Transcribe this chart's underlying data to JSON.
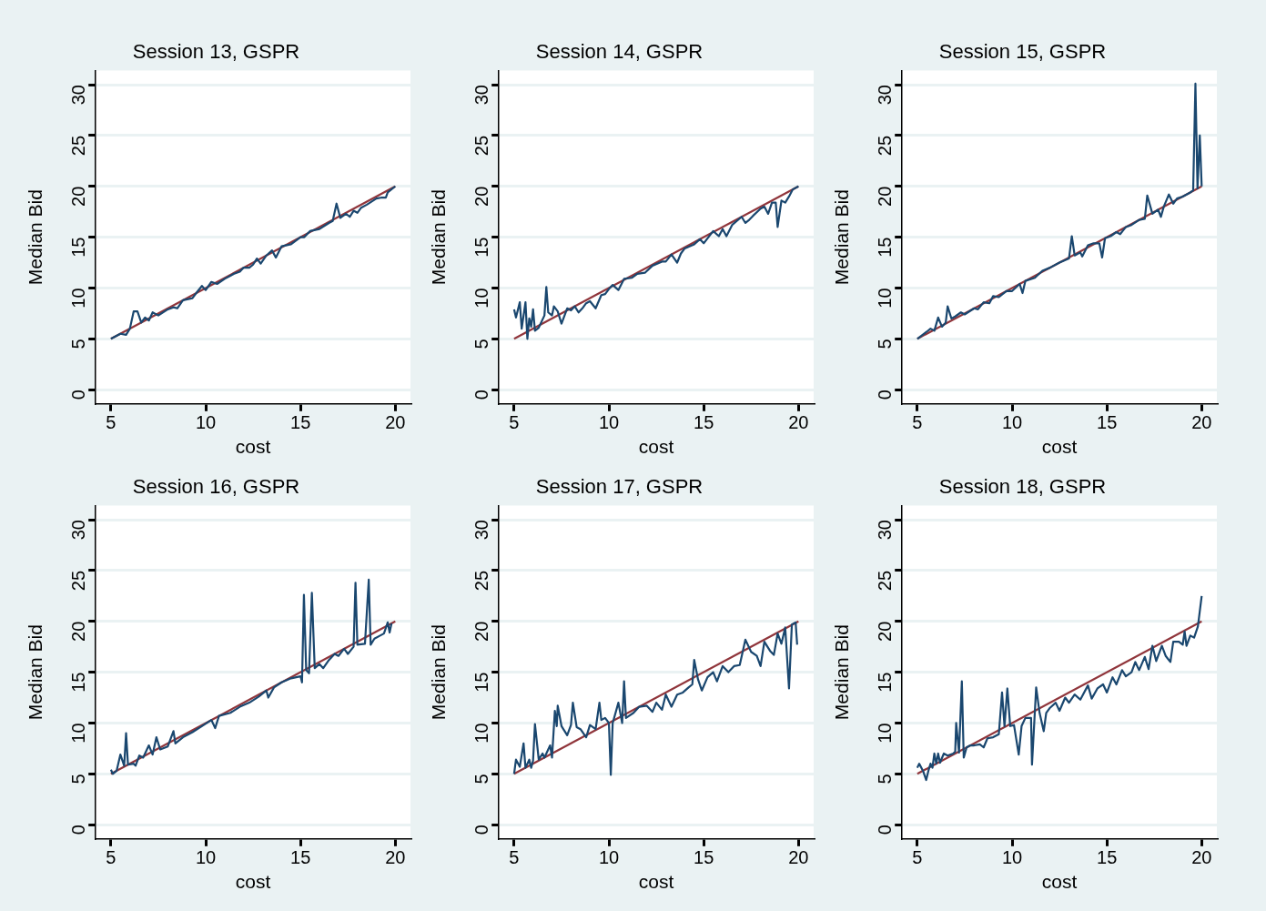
{
  "chart_data": [
    {
      "type": "line",
      "title": "Session 13, GSPR",
      "xlabel": "cost",
      "ylabel": "Median Bid",
      "xlim": [
        4.2,
        20.8
      ],
      "ylim": [
        -1.4,
        31.4
      ],
      "xticks": [
        5,
        10,
        15,
        20
      ],
      "yticks": [
        0,
        5,
        10,
        15,
        20,
        25,
        30
      ],
      "grid": "y",
      "marker": "none",
      "legend": false,
      "series": [
        {
          "color": "#1a476f",
          "x": [
            5,
            5.5,
            5.8,
            6.0,
            6.2,
            6.4,
            6.6,
            6.8,
            7.0,
            7.2,
            7.5,
            8.0,
            8.3,
            8.5,
            8.8,
            9.3,
            9.5,
            9.8,
            10.0,
            10.3,
            10.6,
            11.0,
            11.5,
            11.8,
            12.0,
            12.3,
            12.5,
            12.7,
            12.9,
            13.2,
            13.5,
            13.7,
            14.0,
            14.5,
            15.0,
            15.2,
            15.5,
            16.0,
            16.5,
            16.7,
            16.9,
            17.1,
            17.4,
            17.6,
            17.8,
            18.0,
            18.2,
            18.5,
            19.0,
            19.3,
            19.5,
            19.6,
            20
          ],
          "values": [
            5,
            5.5,
            5.4,
            6.0,
            7.7,
            7.7,
            6.6,
            7.1,
            6.8,
            7.6,
            7.3,
            7.9,
            8.1,
            8.0,
            8.8,
            9.0,
            9.5,
            10.2,
            9.8,
            10.6,
            10.4,
            10.9,
            11.4,
            11.6,
            12.0,
            12.0,
            12.3,
            12.9,
            12.4,
            13.2,
            13.7,
            13.0,
            14.1,
            14.3,
            15.0,
            15.0,
            15.6,
            15.8,
            16.4,
            16.6,
            18.3,
            16.9,
            17.3,
            17.0,
            17.6,
            17.4,
            17.9,
            18.2,
            18.8,
            18.9,
            18.9,
            19.4,
            20
          ]
        },
        {
          "color": "#90353b",
          "x": [
            5,
            20
          ],
          "values": [
            5,
            20
          ]
        }
      ]
    },
    {
      "type": "line",
      "title": "Session 14, GSPR",
      "xlabel": "cost",
      "ylabel": "Median Bid",
      "xlim": [
        4.2,
        20.8
      ],
      "ylim": [
        -1.4,
        31.4
      ],
      "xticks": [
        5,
        10,
        15,
        20
      ],
      "yticks": [
        0,
        5,
        10,
        15,
        20,
        25,
        30
      ],
      "grid": "y",
      "marker": "none",
      "legend": false,
      "series": [
        {
          "color": "#1a476f",
          "x": [
            5,
            5.1,
            5.3,
            5.4,
            5.6,
            5.7,
            5.8,
            5.9,
            6.0,
            6.1,
            6.3,
            6.6,
            6.7,
            6.8,
            7.0,
            7.1,
            7.3,
            7.5,
            7.8,
            8.0,
            8.2,
            8.4,
            8.6,
            8.8,
            9.0,
            9.3,
            9.6,
            9.8,
            10.0,
            10.2,
            10.5,
            10.8,
            11.2,
            11.5,
            11.9,
            12.3,
            12.8,
            13.0,
            13.3,
            13.6,
            13.8,
            14.0,
            14.5,
            14.8,
            15.0,
            15.5,
            15.8,
            16.0,
            16.2,
            16.5,
            17.0,
            17.2,
            17.4,
            17.6,
            18.0,
            18.2,
            18.4,
            18.6,
            18.8,
            18.9,
            19.1,
            19.3,
            19.5,
            19.7,
            20
          ],
          "values": [
            7.9,
            7.1,
            8.6,
            6.0,
            8.6,
            5.0,
            7.0,
            6.2,
            7.9,
            5.8,
            6.1,
            7.3,
            10.1,
            7.6,
            7.3,
            8.2,
            7.7,
            6.5,
            8.0,
            7.8,
            8.2,
            7.6,
            8.0,
            8.5,
            8.7,
            8.0,
            9.3,
            9.4,
            9.9,
            10.3,
            9.8,
            10.9,
            11.0,
            11.4,
            11.5,
            12.2,
            12.6,
            12.6,
            13.3,
            12.5,
            13.4,
            13.9,
            14.3,
            14.8,
            14.4,
            15.6,
            15.1,
            15.8,
            15.1,
            16.2,
            17.0,
            16.4,
            16.7,
            17.1,
            17.8,
            18.0,
            17.3,
            18.4,
            18.4,
            16.0,
            18.6,
            18.4,
            19.0,
            19.7,
            20
          ]
        },
        {
          "color": "#90353b",
          "x": [
            5,
            20
          ],
          "values": [
            5,
            20
          ]
        }
      ]
    },
    {
      "type": "line",
      "title": "Session 15, GSPR",
      "xlabel": "cost",
      "ylabel": "Median Bid",
      "xlim": [
        4.2,
        20.8
      ],
      "ylim": [
        -1.4,
        31.4
      ],
      "xticks": [
        5,
        10,
        15,
        20
      ],
      "yticks": [
        0,
        5,
        10,
        15,
        20,
        25,
        30
      ],
      "grid": "y",
      "marker": "none",
      "legend": false,
      "series": [
        {
          "color": "#1a476f",
          "x": [
            5,
            5.5,
            5.7,
            5.9,
            6.1,
            6.3,
            6.5,
            6.6,
            6.8,
            7.0,
            7.3,
            7.5,
            8.0,
            8.2,
            8.5,
            8.8,
            9.0,
            9.3,
            9.7,
            10.0,
            10.4,
            10.55,
            10.7,
            11.2,
            11.6,
            12.0,
            12.5,
            13.0,
            13.15,
            13.3,
            13.6,
            13.7,
            14.0,
            14.3,
            14.6,
            14.75,
            14.9,
            15.2,
            15.5,
            15.7,
            16.0,
            16.3,
            16.7,
            17.0,
            17.13,
            17.4,
            17.7,
            17.85,
            18.0,
            18.27,
            18.5,
            18.7,
            19.0,
            19.4,
            19.55,
            19.67,
            19.78,
            19.9,
            20
          ],
          "values": [
            5,
            5.7,
            6.0,
            5.8,
            7.1,
            6.2,
            6.6,
            8.2,
            7.0,
            7.2,
            7.6,
            7.4,
            8.0,
            7.9,
            8.6,
            8.5,
            9.2,
            9.1,
            9.7,
            9.7,
            10.4,
            9.5,
            10.7,
            11.0,
            11.7,
            12.0,
            12.5,
            12.9,
            15.1,
            13.2,
            13.5,
            13.1,
            14.2,
            14.4,
            14.4,
            13.0,
            14.9,
            15.1,
            15.5,
            15.3,
            16.0,
            16.2,
            16.7,
            16.8,
            19.1,
            17.3,
            17.7,
            17.0,
            18.0,
            19.2,
            18.3,
            18.8,
            19.0,
            19.4,
            19.6,
            30.1,
            19.8,
            25.0,
            20
          ]
        },
        {
          "color": "#90353b",
          "x": [
            5,
            20
          ],
          "values": [
            5,
            20
          ]
        }
      ]
    },
    {
      "type": "line",
      "title": "Session 16, GSPR",
      "xlabel": "cost",
      "ylabel": "Median Bid",
      "xlim": [
        4.2,
        20.8
      ],
      "ylim": [
        -1.4,
        31.4
      ],
      "xticks": [
        5,
        10,
        15,
        20
      ],
      "yticks": [
        0,
        5,
        10,
        15,
        20,
        25,
        30
      ],
      "grid": "y",
      "marker": "none",
      "legend": false,
      "series": [
        {
          "color": "#1a476f",
          "x": [
            5,
            5.1,
            5.3,
            5.5,
            5.7,
            5.8,
            5.9,
            6.2,
            6.3,
            6.5,
            6.7,
            7.0,
            7.2,
            7.4,
            7.6,
            8.0,
            8.3,
            8.4,
            8.8,
            9.3,
            9.8,
            10.3,
            10.5,
            10.7,
            11.3,
            11.8,
            12.3,
            12.8,
            13.2,
            13.3,
            13.6,
            14.0,
            14.5,
            15.0,
            15.08,
            15.18,
            15.3,
            15.45,
            15.6,
            15.75,
            16.0,
            16.2,
            16.5,
            16.8,
            17.0,
            17.3,
            17.5,
            17.8,
            17.9,
            18.0,
            18.4,
            18.6,
            18.7,
            18.9,
            19.2,
            19.4,
            19.6,
            19.7,
            19.8
          ],
          "values": [
            5.4,
            5.0,
            5.3,
            6.9,
            5.8,
            9.0,
            5.9,
            6.0,
            5.8,
            6.8,
            6.6,
            7.8,
            6.9,
            8.6,
            7.4,
            7.7,
            9.2,
            8.0,
            8.6,
            9.1,
            9.7,
            10.3,
            9.5,
            10.7,
            11.0,
            11.6,
            12.0,
            12.6,
            13.2,
            12.5,
            13.5,
            14.0,
            14.4,
            14.6,
            14.0,
            22.6,
            15.2,
            14.9,
            22.8,
            15.4,
            15.8,
            15.4,
            16.2,
            16.8,
            16.6,
            17.3,
            16.8,
            17.5,
            23.8,
            17.7,
            17.8,
            24.1,
            17.7,
            18.3,
            18.6,
            18.8,
            19.9,
            18.9,
            19.8
          ]
        },
        {
          "color": "#90353b",
          "x": [
            5,
            20
          ],
          "values": [
            5,
            20
          ]
        }
      ]
    },
    {
      "type": "line",
      "title": "Session 17, GSPR",
      "xlabel": "cost",
      "ylabel": "Median Bid",
      "xlim": [
        4.2,
        20.8
      ],
      "ylim": [
        -1.4,
        31.4
      ],
      "xticks": [
        5,
        10,
        15,
        20
      ],
      "yticks": [
        0,
        5,
        10,
        15,
        20,
        25,
        30
      ],
      "grid": "y",
      "marker": "none",
      "legend": false,
      "series": [
        {
          "color": "#1a476f",
          "x": [
            5,
            5.1,
            5.3,
            5.5,
            5.6,
            5.8,
            5.9,
            6.0,
            6.1,
            6.3,
            6.5,
            6.6,
            6.8,
            6.9,
            7.0,
            7.15,
            7.25,
            7.3,
            7.5,
            7.8,
            8.0,
            8.1,
            8.3,
            8.5,
            8.8,
            9.0,
            9.3,
            9.5,
            9.6,
            9.8,
            10.0,
            10.1,
            10.2,
            10.5,
            10.7,
            10.8,
            10.9,
            11.3,
            11.6,
            12.0,
            12.3,
            12.5,
            12.8,
            13.0,
            13.3,
            13.6,
            13.9,
            14.2,
            14.4,
            14.5,
            14.7,
            14.9,
            15.2,
            15.5,
            15.7,
            16.0,
            16.3,
            16.6,
            16.9,
            17.2,
            17.5,
            17.8,
            18.0,
            18.2,
            18.5,
            18.7,
            18.9,
            19.1,
            19.3,
            19.5,
            19.65,
            19.85,
            19.93
          ],
          "values": [
            5,
            6.4,
            5.7,
            8.0,
            5.6,
            6.4,
            5.6,
            6.3,
            9.9,
            6.4,
            7.0,
            6.6,
            7.4,
            7.8,
            6.6,
            11.2,
            9.7,
            11.7,
            9.7,
            8.8,
            9.8,
            12.0,
            9.6,
            9.4,
            8.6,
            9.8,
            9.4,
            12.0,
            10.3,
            10.5,
            10.0,
            4.9,
            10.0,
            12.0,
            10.0,
            14.1,
            10.5,
            11.0,
            11.6,
            11.7,
            11.1,
            12.0,
            11.3,
            12.8,
            11.6,
            12.8,
            13.0,
            13.5,
            13.8,
            16.2,
            14.3,
            13.2,
            14.5,
            15.0,
            14.1,
            15.6,
            15.0,
            15.6,
            15.7,
            18.2,
            17.0,
            16.6,
            15.6,
            18.0,
            17.1,
            16.7,
            18.8,
            17.8,
            19.4,
            13.4,
            19.7,
            19.9,
            17.7
          ]
        },
        {
          "color": "#90353b",
          "x": [
            5,
            20
          ],
          "values": [
            5,
            20
          ]
        }
      ]
    },
    {
      "type": "line",
      "title": "Session 18, GSPR",
      "xlabel": "cost",
      "ylabel": "Median Bid",
      "xlim": [
        4.2,
        20.8
      ],
      "ylim": [
        -1.4,
        31.4
      ],
      "xticks": [
        5,
        10,
        15,
        20
      ],
      "yticks": [
        0,
        5,
        10,
        15,
        20,
        25,
        30
      ],
      "grid": "y",
      "marker": "none",
      "legend": false,
      "series": [
        {
          "color": "#1a476f",
          "x": [
            5,
            5.1,
            5.3,
            5.47,
            5.6,
            5.7,
            5.8,
            5.9,
            6.0,
            6.1,
            6.2,
            6.4,
            6.6,
            6.9,
            7.0,
            7.05,
            7.2,
            7.35,
            7.45,
            7.6,
            7.8,
            8.0,
            8.3,
            8.5,
            8.7,
            9.0,
            9.3,
            9.47,
            9.6,
            9.75,
            9.9,
            10.1,
            10.35,
            10.5,
            10.7,
            11.0,
            11.05,
            11.27,
            11.45,
            11.67,
            11.8,
            12.0,
            12.3,
            12.5,
            12.8,
            13.0,
            13.3,
            13.6,
            14.0,
            14.2,
            14.5,
            14.8,
            15.0,
            15.3,
            15.5,
            15.8,
            16.0,
            16.3,
            16.5,
            16.7,
            17.0,
            17.2,
            17.4,
            17.6,
            17.9,
            18.1,
            18.35,
            18.5,
            18.8,
            19.0,
            19.1,
            19.2,
            19.4,
            19.6,
            19.8,
            20
          ],
          "values": [
            5.6,
            6.0,
            5.3,
            4.4,
            5.4,
            6.0,
            5.6,
            7.0,
            6.0,
            7.0,
            6.1,
            7.0,
            6.8,
            7.0,
            7.2,
            10.0,
            7.1,
            14.1,
            6.6,
            7.6,
            7.8,
            7.8,
            7.9,
            7.6,
            8.5,
            8.6,
            8.9,
            13.0,
            9.7,
            13.4,
            9.7,
            9.8,
            6.9,
            9.7,
            10.5,
            10.5,
            5.9,
            13.5,
            11.0,
            9.2,
            11.0,
            11.5,
            12.0,
            11.2,
            12.5,
            12.0,
            12.8,
            12.3,
            13.7,
            12.4,
            13.4,
            13.8,
            13.0,
            14.5,
            13.8,
            15.2,
            14.6,
            15.0,
            16.0,
            15.2,
            16.5,
            15.3,
            17.6,
            16.1,
            17.6,
            16.6,
            16.0,
            18.0,
            18.0,
            17.7,
            19.0,
            17.6,
            18.6,
            18.4,
            19.5,
            22.5
          ]
        },
        {
          "color": "#90353b",
          "x": [
            5,
            20
          ],
          "values": [
            5,
            20
          ]
        }
      ]
    }
  ]
}
